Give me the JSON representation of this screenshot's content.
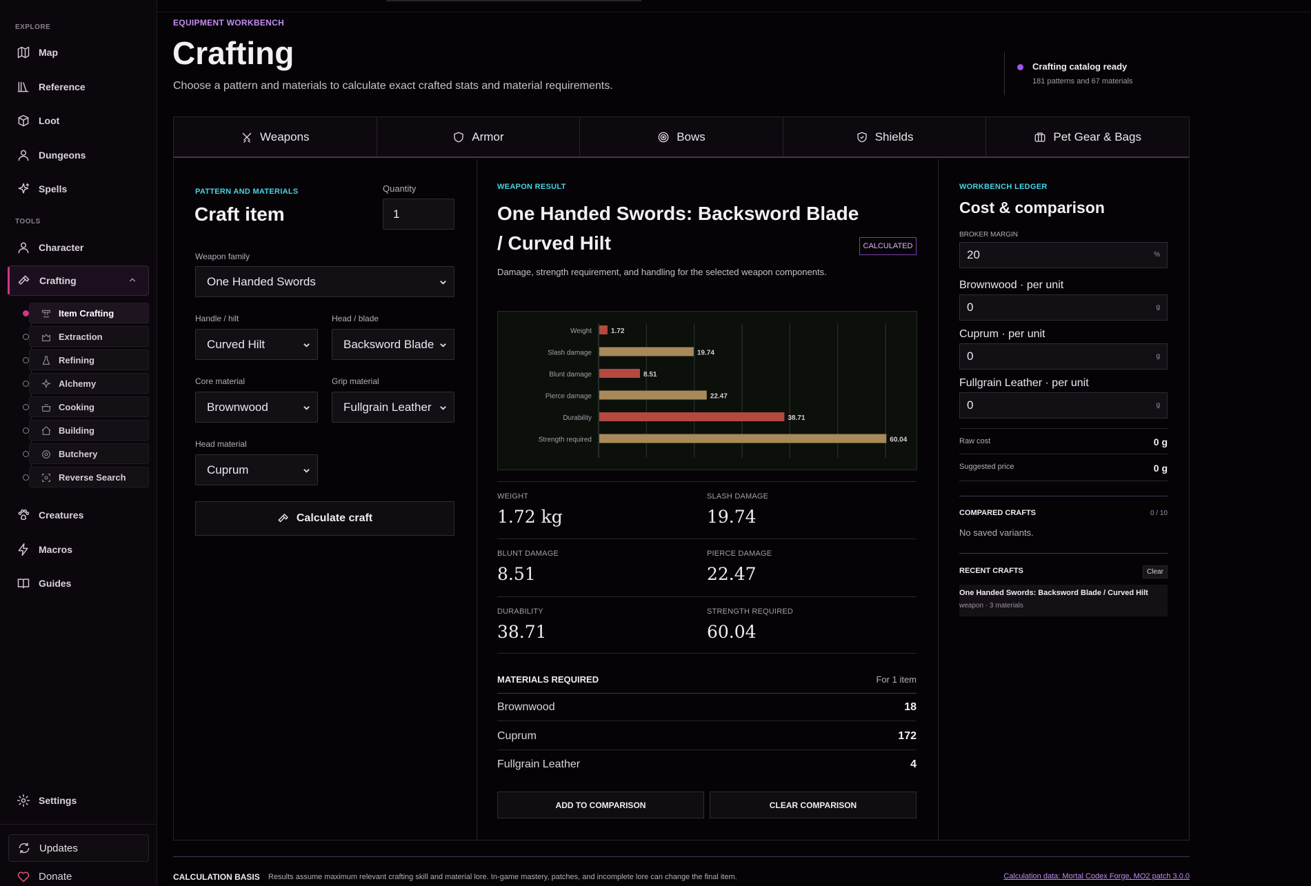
{
  "sidebar": {
    "explore_label": "EXPLORE",
    "tools_label": "TOOLS",
    "explore_items": [
      {
        "label": "Map",
        "icon": "map-icon"
      },
      {
        "label": "Reference",
        "icon": "books-icon"
      },
      {
        "label": "Loot",
        "icon": "loot-icon"
      },
      {
        "label": "Dungeons",
        "icon": "dungeon-icon"
      },
      {
        "label": "Spells",
        "icon": "sparkle-icon"
      }
    ],
    "tools_items": [
      {
        "label": "Character",
        "icon": "user-icon"
      },
      {
        "label": "Crafting",
        "icon": "hammer-icon"
      }
    ],
    "crafting_sub": [
      {
        "label": "Item Crafting",
        "icon": "anvil-icon"
      },
      {
        "label": "Extraction",
        "icon": "pickaxe-icon"
      },
      {
        "label": "Refining",
        "icon": "flask-icon"
      },
      {
        "label": "Alchemy",
        "icon": "sparkle-icon"
      },
      {
        "label": "Cooking",
        "icon": "pot-icon"
      },
      {
        "label": "Building",
        "icon": "house-icon"
      },
      {
        "label": "Butchery",
        "icon": "meat-icon"
      },
      {
        "label": "Reverse Search",
        "icon": "scan-icon"
      }
    ],
    "more_items": [
      {
        "label": "Creatures",
        "icon": "paw-icon"
      },
      {
        "label": "Macros",
        "icon": "bolt-icon"
      },
      {
        "label": "Guides",
        "icon": "book-icon"
      }
    ],
    "settings_label": "Settings",
    "updates_label": "Updates",
    "donate_label": "Donate"
  },
  "header": {
    "eyebrow": "EQUIPMENT WORKBENCH",
    "title": "Crafting",
    "subtitle": "Choose a pattern and materials to calculate exact crafted stats and material requirements.",
    "status_title": "Crafting catalog ready",
    "status_detail": "181 patterns and 67 materials"
  },
  "tabs": [
    {
      "label": "Weapons",
      "icon": "swords-icon"
    },
    {
      "label": "Armor",
      "icon": "shield-icon"
    },
    {
      "label": "Bows",
      "icon": "target-icon"
    },
    {
      "label": "Shields",
      "icon": "shield-check-icon"
    },
    {
      "label": "Pet Gear & Bags",
      "icon": "bag-icon"
    }
  ],
  "craft": {
    "eyebrow": "PATTERN AND MATERIALS",
    "title": "Craft item",
    "quantity_label": "Quantity",
    "quantity_value": "1",
    "weapon_family_label": "Weapon family",
    "weapon_family": "One Handed Swords",
    "handle_label": "Handle / hilt",
    "handle": "Curved Hilt",
    "head_label": "Head / blade",
    "head": "Backsword Blade",
    "core_label": "Core material",
    "core": "Brownwood",
    "grip_label": "Grip material",
    "grip": "Fullgrain Leather",
    "head_mat_label": "Head material",
    "head_mat": "Cuprum",
    "calculate_label": "Calculate craft"
  },
  "result": {
    "eyebrow": "WEAPON RESULT",
    "title_line1": "One Handed Swords: Backsword Blade",
    "title_line2": "/ Curved Hilt",
    "badge": "CALCULATED",
    "description": "Damage, strength requirement, and handling for the selected weapon components.",
    "stats": [
      {
        "label": "WEIGHT",
        "value": "1.72 kg"
      },
      {
        "label": "SLASH DAMAGE",
        "value": "19.74"
      },
      {
        "label": "BLUNT DAMAGE",
        "value": "8.51"
      },
      {
        "label": "PIERCE DAMAGE",
        "value": "22.47"
      },
      {
        "label": "DURABILITY",
        "value": "38.71"
      },
      {
        "label": "STRENGTH REQUIRED",
        "value": "60.04"
      }
    ],
    "materials_title": "MATERIALS REQUIRED",
    "materials_for": "For 1 item",
    "materials": [
      {
        "name": "Brownwood",
        "qty": "18"
      },
      {
        "name": "Cuprum",
        "qty": "172"
      },
      {
        "name": "Fullgrain Leather",
        "qty": "4"
      }
    ],
    "add_label": "ADD TO COMPARISON",
    "clear_label": "CLEAR COMPARISON"
  },
  "chart_data": {
    "type": "bar",
    "orientation": "horizontal",
    "categories": [
      "Weight",
      "Slash damage",
      "Blunt damage",
      "Pierce damage",
      "Durability",
      "Strength required"
    ],
    "values": [
      1.72,
      19.74,
      8.51,
      22.47,
      38.71,
      60.04
    ],
    "value_labels": [
      "1.72",
      "19.74",
      "8.51",
      "22.47",
      "38.71",
      "60.04"
    ],
    "colors": [
      "#b5493f",
      "#a8895a",
      "#b5493f",
      "#a8895a",
      "#b5493f",
      "#a8895a"
    ],
    "xlim": [
      0,
      60
    ],
    "grid": true
  },
  "ledger": {
    "eyebrow": "WORKBENCH LEDGER",
    "title": "Cost & comparison",
    "broker_label": "BROKER MARGIN",
    "broker_value": "20",
    "broker_unit": "%",
    "prices": [
      {
        "label": "Brownwood · per unit",
        "value": "0",
        "unit": "g"
      },
      {
        "label": "Cuprum · per unit",
        "value": "0",
        "unit": "g"
      },
      {
        "label": "Fullgrain Leather · per unit",
        "value": "0",
        "unit": "g"
      }
    ],
    "raw_cost_label": "Raw cost",
    "raw_cost": "0 g",
    "suggested_label": "Suggested price",
    "suggested": "0 g",
    "compared_title": "COMPARED CRAFTS",
    "compared_count": "0 / 10",
    "compared_empty": "No saved variants.",
    "recent_title": "RECENT CRAFTS",
    "recent_clear": "Clear",
    "recent_item_title": "One Handed Swords: Backsword Blade / Curved Hilt",
    "recent_item_meta": "weapon · 3 materials"
  },
  "footer": {
    "basis_label": "CALCULATION BASIS",
    "basis_text": "Results assume maximum relevant crafting skill and material lore. In-game mastery, patches, and incomplete lore can change the final item.",
    "link": "Calculation data: Mortal Codex Forge, MO2 patch 3.0.0"
  }
}
